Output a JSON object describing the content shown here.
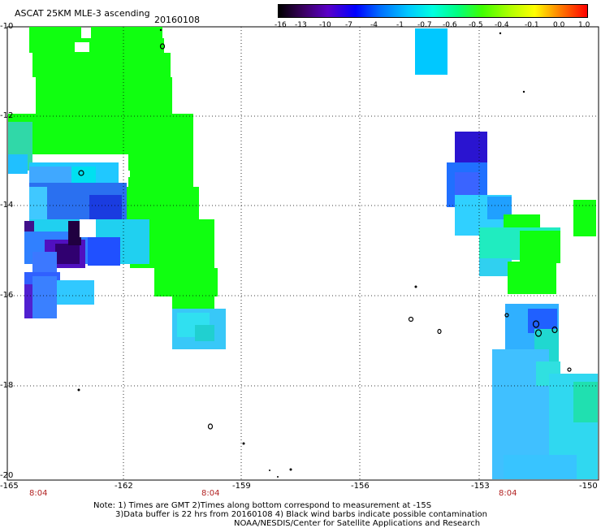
{
  "header": {
    "title": "ASCAT 25KM MLE-3 ascending",
    "date": "20160108"
  },
  "colorbar": {
    "labels": [
      "-16",
      "-13",
      "-10",
      "-7",
      "-4",
      "-1",
      "-0.7",
      "-0.6",
      "-0.5",
      "-0.4",
      "-0.1",
      "0.0",
      "1.0"
    ],
    "colors": [
      "#000000",
      "#3a0060",
      "#5a00c8",
      "#0000ff",
      "#0070ff",
      "#00c8ff",
      "#00ffe0",
      "#00ff80",
      "#40ff00",
      "#b0ff00",
      "#ffff00",
      "#ff8000",
      "#ff0000"
    ]
  },
  "axes": {
    "lat_labels": [
      "-10",
      "-12",
      "-14",
      "-16",
      "-18",
      "-20"
    ],
    "lon_labels": [
      "-165",
      "-162",
      "-159",
      "-156",
      "-153",
      "-150"
    ],
    "time_labels": [
      "8:04",
      "8:04",
      "8:04"
    ]
  },
  "notes": {
    "line1": "Note: 1) Times are GMT 2)Times along bottom correspond to measurement at -15S",
    "line2": "3)Data buffer is 22 hrs from 20160108 4) Black wind barbs indicate possible contamination",
    "line3": "NOAA/NESDIS/Center for Satellite Applications and Research"
  }
}
